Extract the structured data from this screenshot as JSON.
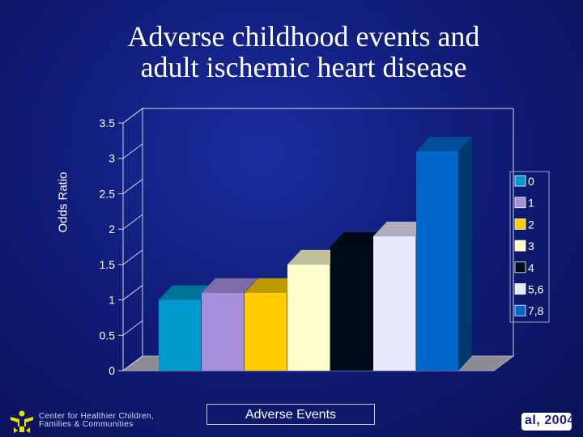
{
  "slide": {
    "title_line1": "Adverse childhood events and",
    "title_line2": "adult ischemic heart disease",
    "footer_org_line1": "Center for Healthier Children,",
    "footer_org_line2": "Families & Communities",
    "footer_badge": "al, 2004"
  },
  "chart_data": {
    "type": "bar",
    "title": "",
    "xlabel": "Adverse Events",
    "ylabel": "Odds Ratio",
    "ylim": [
      0,
      3.5
    ],
    "yticks": [
      "0",
      "0.5",
      "1",
      "1.5",
      "2",
      "2.5",
      "3",
      "3.5"
    ],
    "grid": false,
    "legend_position": "right",
    "series": [
      {
        "name": "0",
        "value": 1.0,
        "color": "#0099cc"
      },
      {
        "name": "1",
        "value": 1.1,
        "color": "#a690dc"
      },
      {
        "name": "2",
        "value": 1.1,
        "color": "#ffcc00"
      },
      {
        "name": "3",
        "value": 1.5,
        "color": "#ffffcc"
      },
      {
        "name": "4",
        "value": 1.75,
        "color": "#000c1a"
      },
      {
        "name": "5,6",
        "value": 1.9,
        "color": "#e8e8ff"
      },
      {
        "name": "7,8",
        "value": 3.1,
        "color": "#0066cc"
      }
    ]
  }
}
